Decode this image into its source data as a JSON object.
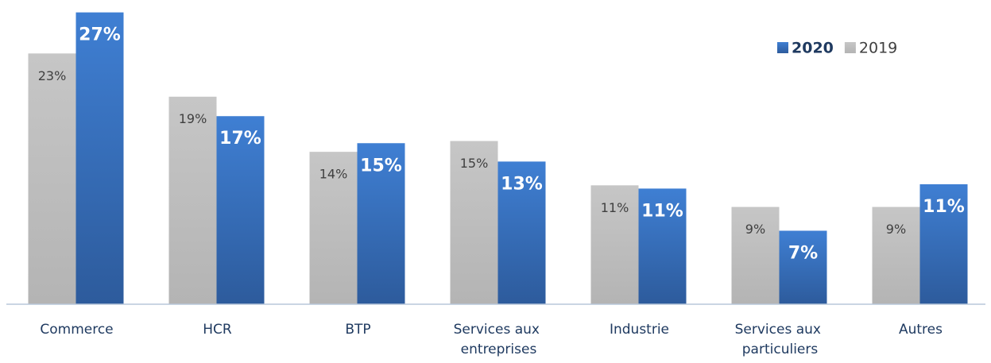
{
  "chart_data": {
    "type": "bar",
    "categories": [
      "Commerce",
      "HCR",
      "BTP",
      "Services aux entreprises",
      "Industrie",
      "Services aux particuliers",
      "Autres"
    ],
    "series": [
      {
        "name": "2020",
        "color": "#3a78c9",
        "values": [
          27.0,
          17.4,
          14.9,
          13.2,
          10.7,
          6.8,
          11.1
        ],
        "value_labels": [
          "27%",
          "17%",
          "15%",
          "13%",
          "11%",
          "7%",
          "11%"
        ]
      },
      {
        "name": "2019",
        "color": "#bfbfbf",
        "values": [
          23.2,
          19.2,
          14.1,
          15.1,
          11.0,
          9.0,
          9.0
        ],
        "value_labels": [
          "23%",
          "19%",
          "14%",
          "15%",
          "11%",
          "9%",
          "9%"
        ]
      }
    ],
    "ylim": [
      0,
      28
    ],
    "legend": "upper right"
  }
}
